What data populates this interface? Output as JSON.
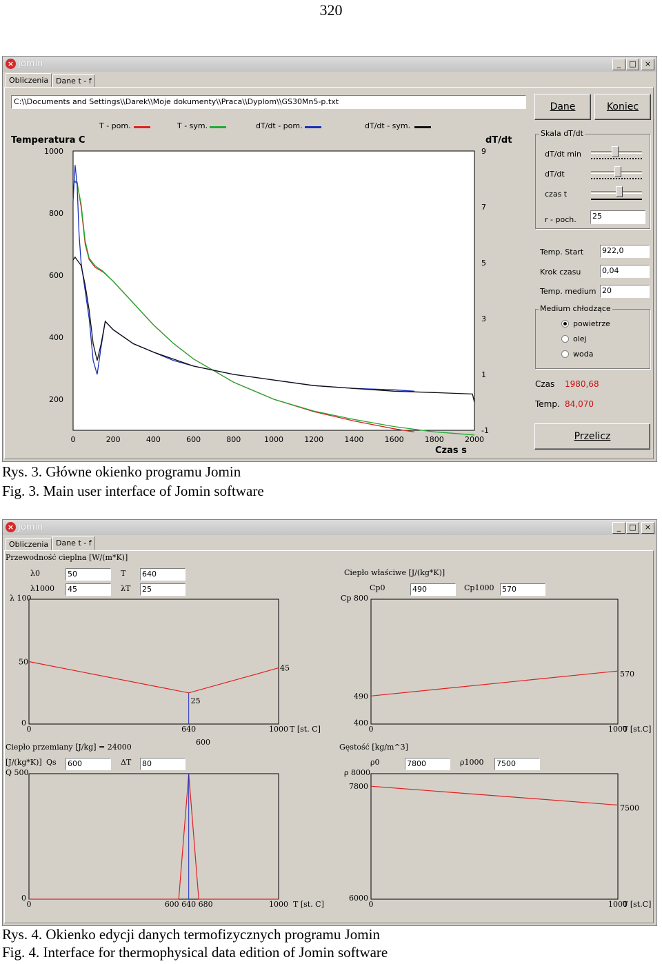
{
  "page_number": "320",
  "fig3": {
    "caption_pl": "Rys. 3. Główne okienko programu Jomin",
    "caption_en": "Fig. 3. Main user interface of Jomin software",
    "window": {
      "title": "Jomin",
      "controls": [
        "_",
        "□",
        "×"
      ],
      "tabs": [
        "Obliczenia",
        "Dane t - f"
      ],
      "path": "C:\\\\Documents and Settings\\\\Darek\\\\Moje dokumenty\\\\Praca\\\\Dyplom\\\\GS30Mn5-p.txt",
      "btn_dane": "Dane",
      "btn_koniec": "Koniec",
      "btn_przelicz": "Przelicz",
      "skala_label": "Skala dT/dt",
      "slider_labels": [
        "dT/dt min",
        "dT/dt",
        "czas t"
      ],
      "r_poch_label": "r - poch.",
      "r_poch_value": "25",
      "temp_start_label": "Temp. Start",
      "temp_start_value": "922,0",
      "krok_label": "Krok czasu",
      "krok_value": "0,04",
      "temp_medium_label": "Temp. medium",
      "temp_medium_value": "20",
      "medium_label": "Medium chłodzące",
      "medium_options": [
        "powietrze",
        "olej",
        "woda"
      ],
      "medium_selected": "powietrze",
      "czas_label": "Czas",
      "czas_value": "1980,68",
      "temp_label": "Temp.",
      "temp_value": "84,070",
      "colors": {
        "t_pom": "#dd2222",
        "t_sym": "#22aa33",
        "dtdt_pom": "#1a2fb8",
        "dtdt_sym": "#111111"
      }
    }
  },
  "chart_data": [
    {
      "type": "line",
      "title": "",
      "ylabel": "Temperatura  C",
      "y2label": "dT/dt",
      "xlabel": "Czas  s",
      "legend": [
        "T - pom.",
        "T - sym.",
        "dT/dt - pom.",
        "dT/dt - sym."
      ],
      "legend_placement": "top",
      "x_ticks": [
        "0",
        "200",
        "400",
        "600",
        "800",
        "1000",
        "1200",
        "1400",
        "1600",
        "1800",
        "2000"
      ],
      "y_ticks": [
        "1000",
        "800",
        "600",
        "400",
        "200"
      ],
      "y2_ticks": [
        "9",
        "7",
        "5",
        "3",
        "1",
        "-1"
      ],
      "xlim": [
        0,
        2000
      ],
      "ylim": [
        100,
        1000
      ],
      "y2lim": [
        -1,
        9
      ],
      "series": [
        {
          "name": "T - pom.",
          "axis": "left",
          "x": [
            0,
            20,
            40,
            60,
            80,
            110,
            150,
            200,
            300,
            400,
            500,
            600,
            800,
            1000,
            1200,
            1400,
            1600,
            1700
          ],
          "values": [
            905,
            900,
            820,
            700,
            650,
            625,
            610,
            580,
            510,
            440,
            380,
            330,
            255,
            200,
            160,
            130,
            105,
            95
          ]
        },
        {
          "name": "T - sym.",
          "axis": "left",
          "x": [
            0,
            20,
            40,
            60,
            80,
            110,
            150,
            200,
            300,
            400,
            500,
            600,
            800,
            1000,
            1200,
            1400,
            1600,
            1800,
            2000
          ],
          "values": [
            905,
            895,
            830,
            710,
            655,
            630,
            612,
            580,
            510,
            440,
            380,
            330,
            255,
            200,
            162,
            135,
            112,
            95,
            85
          ]
        },
        {
          "name": "dT/dt - pom.",
          "axis": "right",
          "x": [
            0,
            10,
            20,
            30,
            40,
            60,
            80,
            100,
            120,
            140,
            160,
            200,
            300,
            400,
            500,
            600,
            800,
            1000,
            1200,
            1400,
            1600,
            1700
          ],
          "values": [
            7.2,
            8.5,
            7.8,
            6.0,
            5.0,
            4.0,
            3.0,
            1.5,
            1.0,
            2.0,
            2.9,
            2.6,
            2.1,
            1.8,
            1.5,
            1.3,
            1.0,
            0.8,
            0.6,
            0.5,
            0.45,
            0.4
          ]
        },
        {
          "name": "dT/dt - sym.",
          "axis": "right",
          "x": [
            0,
            10,
            20,
            30,
            40,
            60,
            80,
            100,
            120,
            140,
            160,
            200,
            300,
            400,
            500,
            600,
            800,
            1000,
            1200,
            1400,
            1600,
            1800,
            1990,
            2000
          ],
          "values": [
            5.1,
            5.2,
            5.1,
            5.0,
            4.9,
            4.2,
            3.3,
            2.1,
            1.5,
            2.1,
            2.9,
            2.6,
            2.1,
            1.8,
            1.55,
            1.3,
            1.0,
            0.8,
            0.6,
            0.5,
            0.4,
            0.35,
            0.3,
            0.0
          ]
        }
      ]
    },
    {
      "type": "line",
      "title": "Przewodność cieplna  [W/(m*K)]",
      "ylabel": "λ",
      "xlabel": "T [st. C]",
      "xlim": [
        0,
        1000
      ],
      "ylim": [
        0,
        100
      ],
      "x_ticks": [
        "0",
        "640",
        "1000"
      ],
      "y_ticks": [
        "100",
        "50",
        "0"
      ],
      "series": [
        {
          "x": [
            0,
            640,
            1000
          ],
          "values": [
            50,
            25,
            45
          ]
        }
      ],
      "data_labels": [
        "45",
        "25"
      ]
    },
    {
      "type": "line",
      "title": "Ciepło właściwe  [J/(kg*K)]",
      "ylabel": "Cp",
      "xlabel": "T [st.C]",
      "xlim": [
        0,
        1000
      ],
      "ylim": [
        400,
        800
      ],
      "x_ticks": [
        "0",
        "1000"
      ],
      "y_ticks": [
        "800",
        "400"
      ],
      "series": [
        {
          "x": [
            0,
            1000
          ],
          "values": [
            490,
            570
          ]
        }
      ],
      "data_labels": [
        "490",
        "570"
      ]
    },
    {
      "type": "line",
      "title": "Ciepło przemiany  [J/kg]  = 24000",
      "ylabel": "Q",
      "xlabel": "T [st. C]",
      "xlim": [
        0,
        1000
      ],
      "ylim": [
        0,
        600
      ],
      "x_ticks": [
        "0",
        "600 640 680",
        "1000"
      ],
      "y_ticks": [
        "600",
        "500",
        "0"
      ],
      "series": [
        {
          "x": [
            0,
            600,
            640,
            680,
            1000
          ],
          "values": [
            0,
            0,
            600,
            0,
            0
          ]
        }
      ]
    },
    {
      "type": "line",
      "title": "Gęstość  [kg/m^3]",
      "ylabel": "ρ",
      "xlabel": "T [st.C]",
      "xlim": [
        0,
        1000
      ],
      "ylim": [
        6000,
        8000
      ],
      "x_ticks": [
        "0",
        "1000"
      ],
      "y_ticks": [
        "8000",
        "7800",
        "6000"
      ],
      "series": [
        {
          "x": [
            0,
            1000
          ],
          "values": [
            7800,
            7500
          ]
        }
      ],
      "data_labels": [
        "7800",
        "7500"
      ]
    }
  ],
  "fig4": {
    "caption_pl": "Rys. 4. Okienko edycji danych termofizycznych programu Jomin",
    "caption_en": "Fig. 4. Interface for thermophysical data edition of Jomin software",
    "window": {
      "title": "Jomin",
      "controls": [
        "_",
        "□",
        "×"
      ],
      "tabs": [
        "Obliczenia",
        "Dane t - f"
      ],
      "lambda": {
        "title": "Przewodność cieplna  [W/(m*K)]",
        "l0_label": "λ0",
        "l0": "50",
        "l1000_label": "λ1000",
        "l1000": "45",
        "T_label": "T",
        "T": "640",
        "lT_label": "λT",
        "lT": "25",
        "ylabel": "λ  100"
      },
      "cp": {
        "title": "Ciepło właściwe  [J/(kg*K)]",
        "cp0_label": "Cp0",
        "cp0": "490",
        "cp1000_label": "Cp1000",
        "cp1000": "570",
        "ylabel": "Cp  800"
      },
      "q": {
        "title": "Ciepło przemiany  [J/kg]  = 24000",
        "unit": "[J/(kg*K)]",
        "qs_label": "Qs",
        "qs": "600",
        "dT_label": "ΔT",
        "dT": "80",
        "ylabel": "Q  500",
        "top": "600"
      },
      "rho": {
        "title": "Gęstość  [kg/m^3]",
        "r0_label": "ρ0",
        "r0": "7800",
        "r1000_label": "ρ1000",
        "r1000": "7500",
        "ylabel": "ρ  8000"
      }
    }
  }
}
